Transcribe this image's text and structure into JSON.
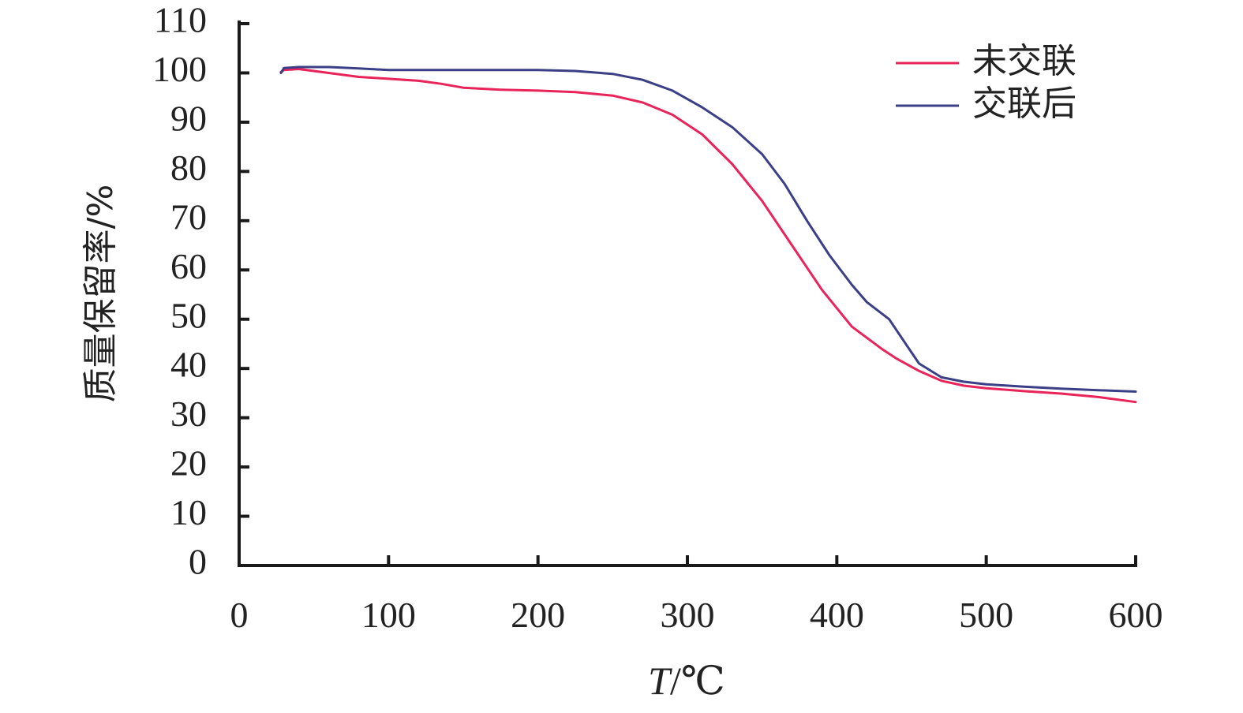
{
  "chart_data": {
    "type": "line",
    "title": "",
    "xlabel": "T/℃",
    "xlabel_italic": "T",
    "xlabel_rest": "/℃",
    "ylabel": "质量保留率/%",
    "xlim": [
      0,
      600
    ],
    "ylim": [
      0,
      110
    ],
    "xticks": [
      0,
      100,
      200,
      300,
      400,
      500,
      600
    ],
    "yticks": [
      0,
      10,
      20,
      30,
      40,
      50,
      60,
      70,
      80,
      90,
      100,
      110
    ],
    "grid": false,
    "legend_position": "top-right",
    "series": [
      {
        "name": "未交联",
        "color": "#e8245a",
        "x": [
          28,
          30,
          40,
          60,
          80,
          100,
          120,
          135,
          150,
          175,
          200,
          225,
          250,
          270,
          290,
          310,
          330,
          350,
          370,
          390,
          410,
          430,
          440,
          455,
          470,
          485,
          500,
          525,
          550,
          575,
          600
        ],
        "y": [
          100.2,
          100.6,
          100.8,
          100.0,
          99.2,
          98.8,
          98.4,
          97.8,
          97.0,
          96.6,
          96.4,
          96.1,
          95.4,
          94.0,
          91.5,
          87.5,
          81.5,
          74.0,
          65.0,
          56.0,
          48.5,
          44.0,
          42.0,
          39.5,
          37.5,
          36.5,
          36.0,
          35.4,
          34.9,
          34.2,
          33.2
        ]
      },
      {
        "name": "交联后",
        "color": "#3a3f86",
        "x": [
          28,
          30,
          40,
          60,
          80,
          100,
          150,
          200,
          225,
          250,
          270,
          290,
          310,
          330,
          350,
          365,
          380,
          395,
          410,
          420,
          435,
          445,
          455,
          470,
          485,
          500,
          525,
          550,
          575,
          600
        ],
        "y": [
          100.0,
          101.0,
          101.2,
          101.2,
          100.9,
          100.6,
          100.6,
          100.6,
          100.4,
          99.8,
          98.6,
          96.4,
          93.0,
          89.0,
          83.5,
          77.5,
          70.0,
          63.0,
          57.0,
          53.5,
          50.0,
          45.5,
          41.0,
          38.2,
          37.3,
          36.8,
          36.3,
          35.9,
          35.6,
          35.3
        ]
      }
    ]
  }
}
